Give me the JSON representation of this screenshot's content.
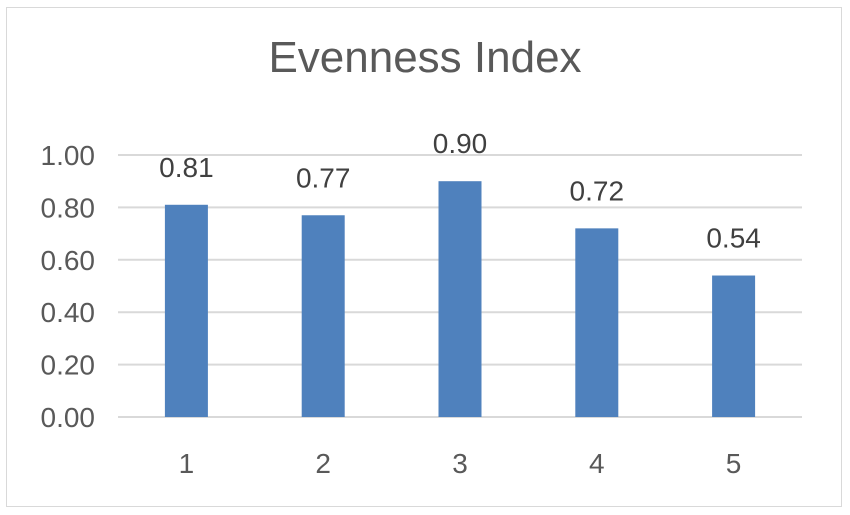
{
  "chart_data": {
    "type": "bar",
    "title": "Evenness Index",
    "categories": [
      "1",
      "2",
      "3",
      "4",
      "5"
    ],
    "values": [
      0.81,
      0.77,
      0.9,
      0.72,
      0.54
    ],
    "data_labels": [
      "0.81",
      "0.77",
      "0.90",
      "0.72",
      "0.54"
    ],
    "y_ticks": [
      "0.00",
      "0.20",
      "0.40",
      "0.60",
      "0.80",
      "1.00"
    ],
    "y_tick_values": [
      0,
      0.2,
      0.4,
      0.6,
      0.8,
      1.0
    ],
    "ylim": [
      0,
      1.0
    ],
    "grid": true,
    "legend": "none",
    "bar_color": "#4f81bd",
    "grid_color": "#d9d9d9",
    "text_color": "#595959"
  }
}
